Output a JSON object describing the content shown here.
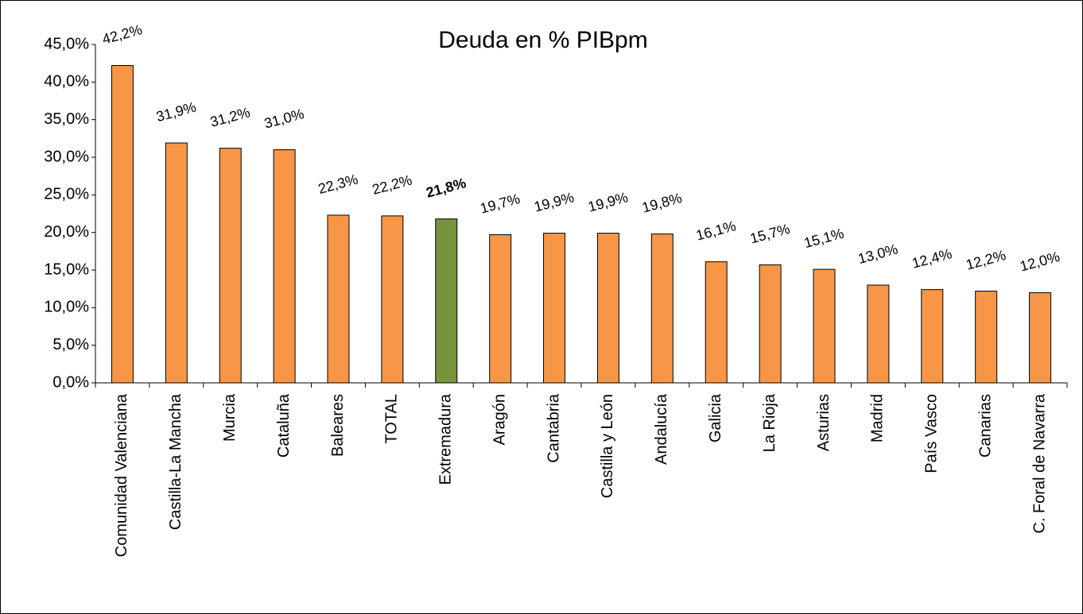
{
  "chart_data": {
    "type": "bar",
    "title": "Deuda en % PIBpm",
    "categories": [
      "Comunidad Valenciana",
      "Castilla-La Mancha",
      "Murcia",
      "Cataluña",
      "Baleares",
      "TOTAL",
      "Extremadura",
      "Aragón",
      "Cantabria",
      "Castilla y León",
      "Andalucía",
      "Galicia",
      "La Rioja",
      "Asturias",
      "Madrid",
      "País Vasco",
      "Canarias",
      "C. Foral de Navarra"
    ],
    "values": [
      42.2,
      31.9,
      31.2,
      31.0,
      22.3,
      22.2,
      21.8,
      19.7,
      19.9,
      19.9,
      19.8,
      16.1,
      15.7,
      15.1,
      13.0,
      12.4,
      12.2,
      12.0
    ],
    "value_labels": [
      "42,2%",
      "31,9%",
      "31,2%",
      "31,0%",
      "22,3%",
      "22,2%",
      "21,8%",
      "19,7%",
      "19,9%",
      "19,9%",
      "19,8%",
      "16,1%",
      "15,7%",
      "15,1%",
      "13,0%",
      "12,4%",
      "12,2%",
      "12,0%"
    ],
    "color": "#f79646",
    "colors": [
      "#f79646",
      "#f79646",
      "#f79646",
      "#f79646",
      "#f79646",
      "#f79646",
      "#77933c",
      "#f79646",
      "#f79646",
      "#f79646",
      "#f79646",
      "#f79646",
      "#f79646",
      "#f79646",
      "#f79646",
      "#f79646",
      "#f79646",
      "#f79646"
    ],
    "ylim": [
      0,
      45
    ],
    "yticks": [
      {
        "value": 0,
        "label": "0,0%"
      },
      {
        "value": 5,
        "label": "5,0%"
      },
      {
        "value": 10,
        "label": "10,0%"
      },
      {
        "value": 15,
        "label": "15,0%"
      },
      {
        "value": 20,
        "label": "20,0%"
      },
      {
        "value": 25,
        "label": "25,0%"
      },
      {
        "value": 30,
        "label": "30,0%"
      },
      {
        "value": 35,
        "label": "35,0%"
      },
      {
        "value": 40,
        "label": "40,0%"
      },
      {
        "value": 45,
        "label": "45,0%"
      }
    ],
    "grid": false
  }
}
